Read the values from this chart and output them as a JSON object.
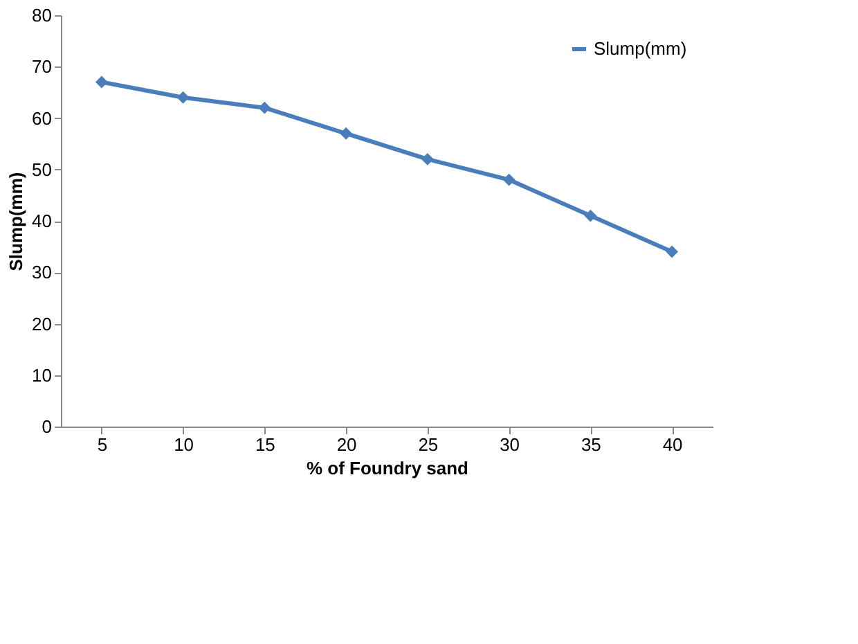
{
  "chart_data": {
    "type": "line",
    "xlabel": "% of Foundry sand",
    "ylabel": "Slump(mm)",
    "categories": [
      "5",
      "10",
      "15",
      "20",
      "25",
      "30",
      "35",
      "40"
    ],
    "series": [
      {
        "name": "Slump(mm)",
        "color": "#4a7ebb",
        "values": [
          67,
          64,
          62,
          57,
          52,
          48,
          41,
          34
        ]
      }
    ],
    "ylim": [
      0,
      80
    ],
    "yticks": [
      0,
      10,
      20,
      30,
      40,
      50,
      60,
      70,
      80
    ],
    "grid": false,
    "legend": "top right",
    "marker": "diamond",
    "line_style": "solid"
  }
}
